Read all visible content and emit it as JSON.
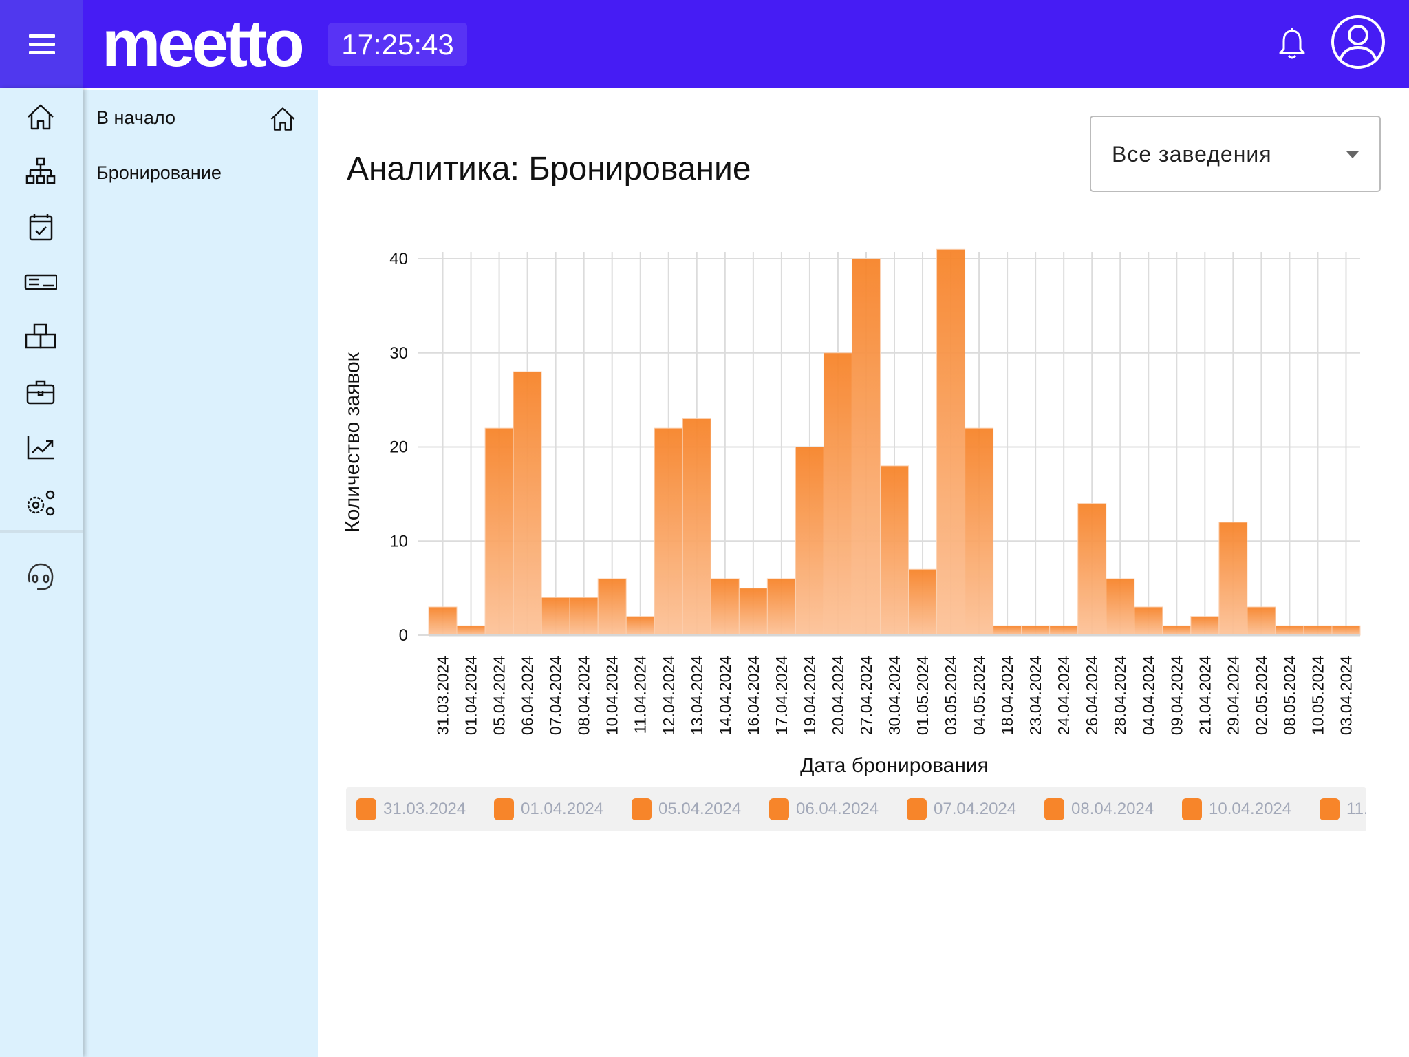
{
  "header": {
    "logo": "meetto",
    "clock": "17:25:43",
    "icons": [
      "menu-icon",
      "bell-icon",
      "user-avatar-icon"
    ]
  },
  "rail": {
    "icons": [
      "home-icon",
      "org-structure-icon",
      "calendar-check-icon",
      "pos-terminal-icon",
      "boxes-icon",
      "briefcase-icon",
      "analytics-icon",
      "settings-icon",
      "support-headset-icon"
    ]
  },
  "panel": {
    "items": [
      {
        "label": "В начало",
        "icon": "home-icon"
      },
      {
        "label": "Бронирование"
      }
    ]
  },
  "main": {
    "title": "Аналитика: Бронирование",
    "venue_select": {
      "value": "Все заведения"
    }
  },
  "colors": {
    "header": "#461cf4",
    "sidebar": "#dcf1fd",
    "bar_top": "#f7842a",
    "bar_bottom": "#fcc39a"
  },
  "chart_data": {
    "type": "bar",
    "xlabel": "Дата бронирования",
    "ylabel": "Количество заявок",
    "ylim": [
      0,
      41
    ],
    "yticks": [
      0,
      10,
      20,
      30,
      40
    ],
    "grid": true,
    "legend_position": "bottom",
    "categories": [
      "31.03.2024",
      "01.04.2024",
      "05.04.2024",
      "06.04.2024",
      "07.04.2024",
      "08.04.2024",
      "10.04.2024",
      "11.04.2024",
      "12.04.2024",
      "13.04.2024",
      "14.04.2024",
      "16.04.2024",
      "17.04.2024",
      "19.04.2024",
      "20.04.2024",
      "27.04.2024",
      "30.04.2024",
      "01.05.2024",
      "03.05.2024",
      "04.05.2024",
      "18.04.2024",
      "23.04.2024",
      "24.04.2024",
      "26.04.2024",
      "28.04.2024",
      "04.04.2024",
      "09.04.2024",
      "21.04.2024",
      "29.04.2024",
      "02.05.2024",
      "08.05.2024",
      "10.05.2024",
      "03.04.2024"
    ],
    "values": [
      3,
      1,
      22,
      28,
      4,
      4,
      6,
      2,
      22,
      23,
      6,
      5,
      6,
      20,
      30,
      40,
      18,
      7,
      41,
      22,
      1,
      1,
      1,
      14,
      6,
      3,
      1,
      2,
      12,
      3,
      1,
      1,
      1
    ],
    "legend_items": [
      "31.03.2024",
      "01.04.2024",
      "05.04.2024",
      "06.04.2024",
      "07.04.2024",
      "08.04.2024",
      "10.04.2024",
      "11."
    ]
  }
}
